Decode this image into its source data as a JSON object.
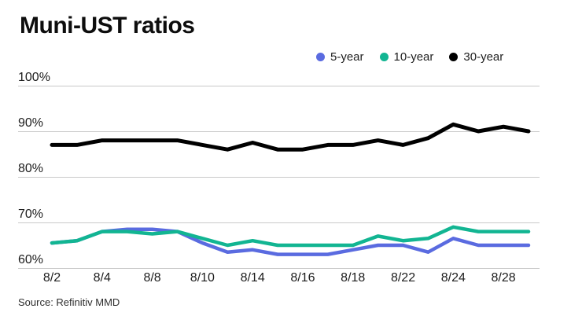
{
  "header": {
    "title": "Muni-UST ratios"
  },
  "source": {
    "text": "Source: Refinitiv MMD"
  },
  "colors": {
    "five_year": "#5a6be0",
    "ten_year": "#12b592",
    "thirty_year": "#000000",
    "gridline": "#c9c9c9",
    "text": "#1c1c1c"
  },
  "chart_data": {
    "type": "line",
    "title": "Muni-UST ratios",
    "x": [
      "8/2",
      "8/3",
      "8/4",
      "8/7",
      "8/8",
      "8/9",
      "8/10",
      "8/11",
      "8/14",
      "8/15",
      "8/16",
      "8/17",
      "8/18",
      "8/21",
      "8/22",
      "8/23",
      "8/24",
      "8/25",
      "8/28",
      "8/29"
    ],
    "xticks": [
      {
        "index": 0,
        "label": "8/2"
      },
      {
        "index": 2,
        "label": "8/4"
      },
      {
        "index": 4,
        "label": "8/8"
      },
      {
        "index": 6,
        "label": "8/10"
      },
      {
        "index": 8,
        "label": "8/14"
      },
      {
        "index": 10,
        "label": "8/16"
      },
      {
        "index": 12,
        "label": "8/18"
      },
      {
        "index": 14,
        "label": "8/22"
      },
      {
        "index": 16,
        "label": "8/24"
      },
      {
        "index": 18,
        "label": "8/28"
      }
    ],
    "series": [
      {
        "name": "5-year",
        "color": "#5a6be0",
        "values": [
          65.5,
          66,
          68,
          68.5,
          68.5,
          68,
          65.5,
          63.5,
          64,
          63,
          63,
          63,
          64,
          65,
          65,
          63.5,
          66.5,
          65,
          65,
          65
        ]
      },
      {
        "name": "10-year",
        "color": "#12b592",
        "values": [
          65.5,
          66,
          68,
          68,
          67.5,
          68,
          66.5,
          65,
          66,
          65,
          65,
          65,
          65,
          67,
          66,
          66.5,
          69,
          68,
          68,
          68
        ]
      },
      {
        "name": "30-year",
        "color": "#000000",
        "values": [
          87,
          87,
          88,
          88,
          88,
          88,
          87,
          86,
          87.5,
          86,
          86,
          87,
          87,
          88,
          87,
          88.5,
          91.5,
          90,
          91,
          90
        ]
      }
    ],
    "ylim": [
      60,
      100
    ],
    "yticks": [
      {
        "value": 100,
        "label": "100%"
      },
      {
        "value": 90,
        "label": "90%"
      },
      {
        "value": 80,
        "label": "80%"
      },
      {
        "value": 70,
        "label": "70%"
      },
      {
        "value": 60,
        "label": "60%"
      }
    ],
    "grid": true,
    "legend_position": "top-right",
    "source": "Source: Refinitiv MMD"
  }
}
